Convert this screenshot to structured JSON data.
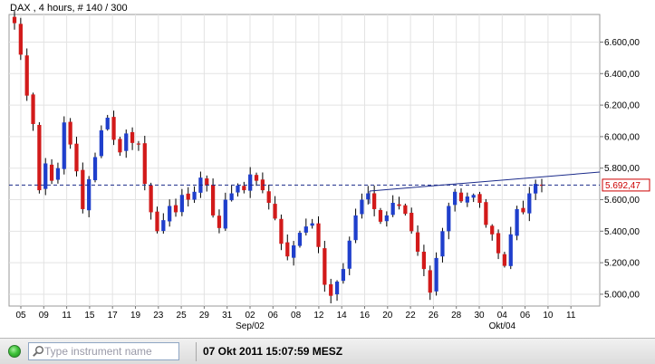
{
  "header": {
    "title": "DAX , 4 hours, # 140 / 300"
  },
  "status": {
    "search_placeholder": "Type instrument name",
    "datetime": "07 Okt 2011 15:07:59 MESZ",
    "led_color": "#3fc23a"
  },
  "chart_data": {
    "type": "candlestick",
    "instrument": "DAX",
    "interval": "4 hours",
    "y_ticks": [
      "5.000,00",
      "5.200,00",
      "5.400,00",
      "5.600,00",
      "5.800,00",
      "6.000,00",
      "6.200,00",
      "6.400,00",
      "6.600,00"
    ],
    "y_tick_values": [
      5000,
      5200,
      5400,
      5600,
      5800,
      6000,
      6200,
      6400,
      6600
    ],
    "ylim": [
      4925,
      6775
    ],
    "x_ticks": [
      "05",
      "09",
      "11",
      "15",
      "17",
      "19",
      "23",
      "25",
      "29",
      "31",
      "02",
      "06",
      "08",
      "12",
      "14",
      "16",
      "20",
      "22",
      "26",
      "28",
      "30",
      "04",
      "06",
      "10",
      "11"
    ],
    "month_labels": [
      "Sep/02",
      "Okt/04"
    ],
    "current_price": 5692.47,
    "current_price_label": "5.692,47",
    "up_color": "#1f3fcc",
    "down_color": "#d21a1a",
    "trendline": {
      "start_value": 5655,
      "end_value": 5775
    },
    "close_path": [
      6720,
      6520,
      6260,
      6080,
      5660,
      5830,
      5720,
      5800,
      6090,
      5950,
      5780,
      5540,
      5730,
      5870,
      6040,
      6120,
      5980,
      5900,
      6020,
      5960,
      5950,
      5700,
      5520,
      5400,
      5470,
      5560,
      5520,
      5630,
      5600,
      5650,
      5740,
      5690,
      5500,
      5420,
      5600,
      5640,
      5690,
      5660,
      5760,
      5720,
      5660,
      5580,
      5480,
      5320,
      5240,
      5310,
      5390,
      5430,
      5450,
      5300,
      5060,
      4990,
      5080,
      5160,
      5340,
      5500,
      5600,
      5640,
      5540,
      5460,
      5500,
      5580,
      5560,
      5510,
      5400,
      5270,
      5160,
      5010,
      5230,
      5400,
      5560,
      5650,
      5590,
      5620,
      5630,
      5580,
      5440,
      5380,
      5260,
      5180,
      5380,
      5540,
      5520,
      5640,
      5700,
      5692
    ]
  }
}
